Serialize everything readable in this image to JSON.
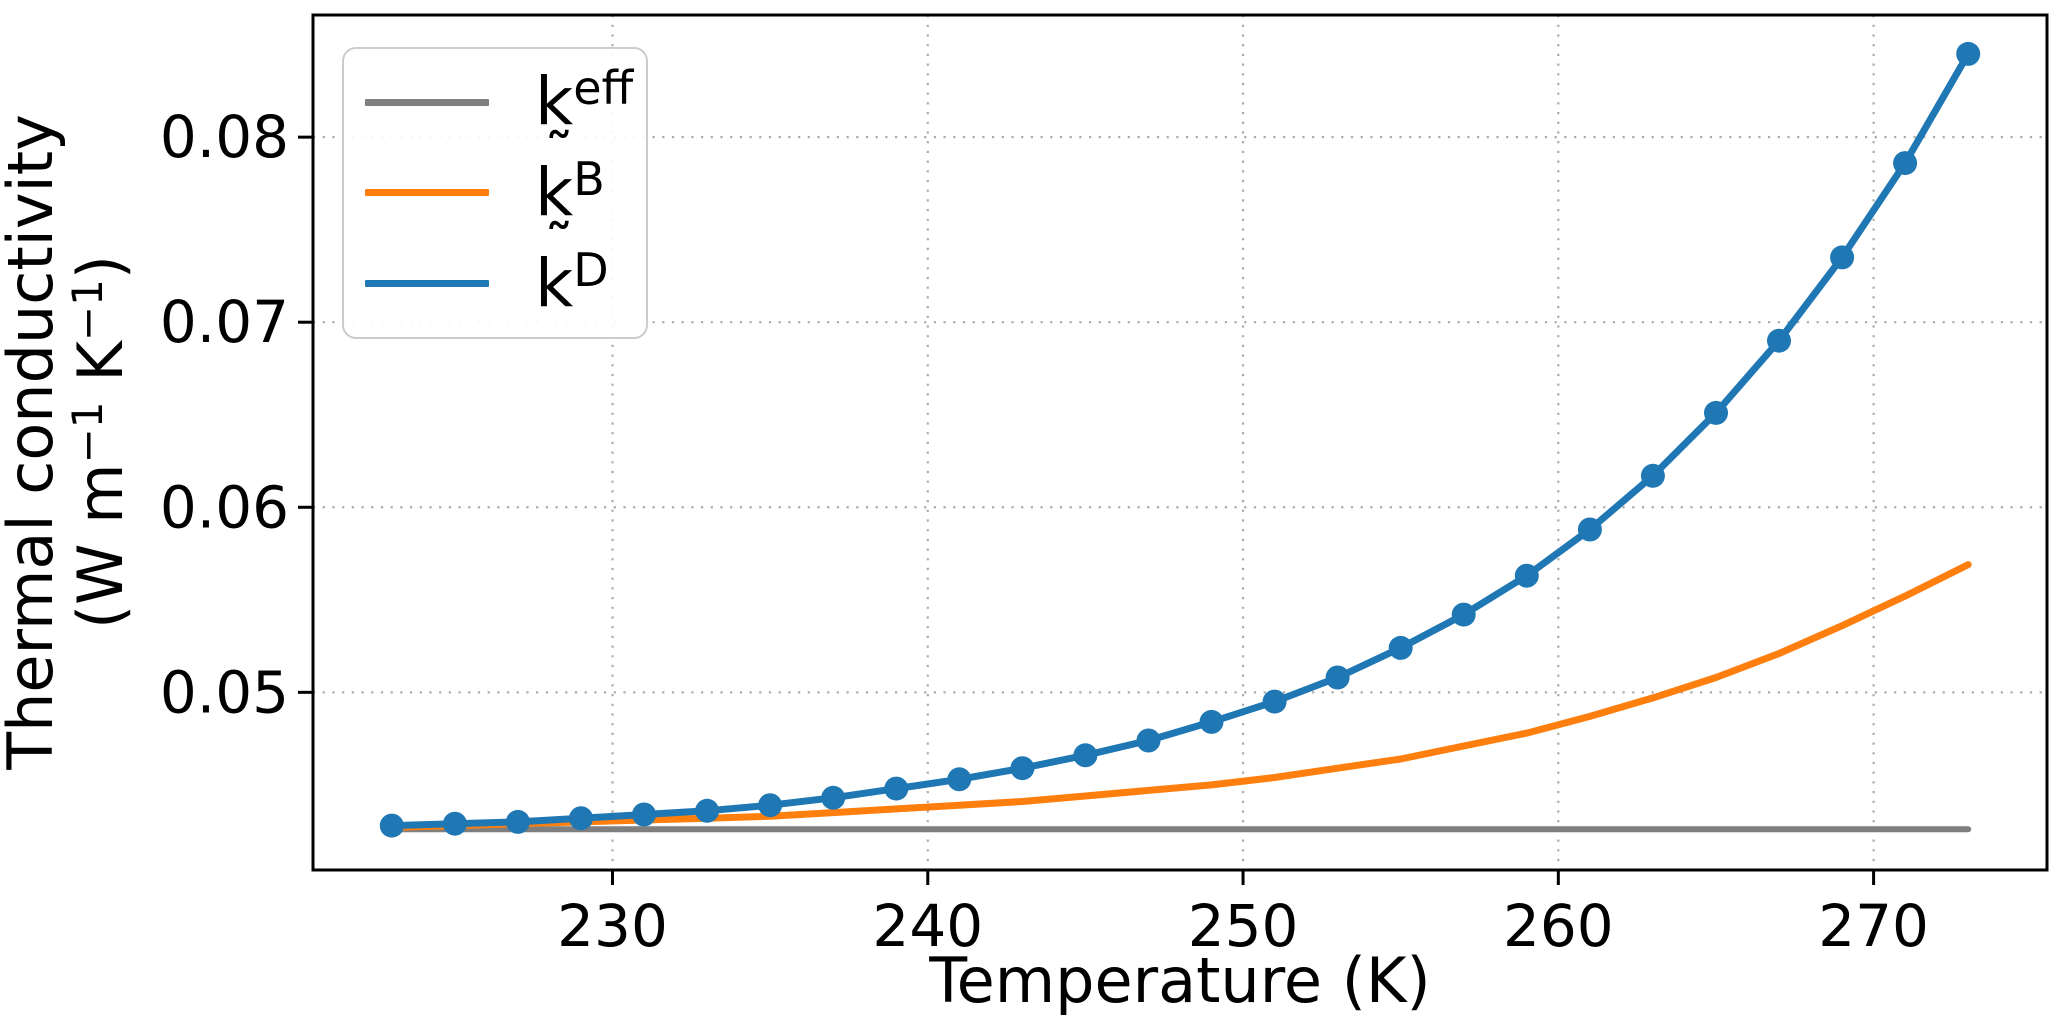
{
  "figure": {
    "xlabel": "Temperature (K)",
    "ylabel_line1": "Thermal conductivity",
    "ylabel_units": {
      "open": "(W m",
      "sup1": "−1",
      "mid": " K",
      "sup2": "−1",
      "close": ")"
    }
  },
  "legend": {
    "items": [
      {
        "base": "k",
        "tilde": "",
        "sup": "eff",
        "color": "#7f7f7f"
      },
      {
        "base": "k",
        "tilde": "˜",
        "sup": "B",
        "color": "#ff7f0e"
      },
      {
        "base": "k",
        "tilde": "˜",
        "sup": "D",
        "color": "#1f77b4"
      }
    ]
  },
  "chart_data": {
    "type": "line",
    "title": "",
    "xlabel": "Temperature (K)",
    "ylabel": "Thermal conductivity (W m−1 K−1)",
    "xlim": [
      220.5,
      275.5
    ],
    "ylim": [
      0.0404,
      0.0866
    ],
    "x_ticks": [
      230,
      240,
      250,
      260,
      270
    ],
    "y_ticks": [
      0.05,
      0.06,
      0.07,
      0.08
    ],
    "grid": "dotted",
    "legend_position": "upper left",
    "x": [
      223,
      225,
      227,
      229,
      231,
      233,
      235,
      237,
      239,
      241,
      243,
      245,
      247,
      249,
      251,
      253,
      255,
      257,
      259,
      261,
      263,
      265,
      267,
      269,
      271,
      273
    ],
    "series": [
      {
        "id": "keff",
        "name": "k^eff",
        "color": "#7f7f7f",
        "marker": false,
        "linewidth": 6,
        "values": [
          0.0426,
          0.0426,
          0.0426,
          0.0426,
          0.0426,
          0.0426,
          0.0426,
          0.0426,
          0.0426,
          0.0426,
          0.0426,
          0.0426,
          0.0426,
          0.0426,
          0.0426,
          0.0426,
          0.0426,
          0.0426,
          0.0426,
          0.0426,
          0.0426,
          0.0426,
          0.0426,
          0.0426,
          0.0426,
          0.0426
        ]
      },
      {
        "id": "kB",
        "name": "k̃^B",
        "color": "#ff7f0e",
        "marker": false,
        "linewidth": 7,
        "values": [
          0.0427,
          0.0428,
          0.0429,
          0.043,
          0.0431,
          0.0432,
          0.0433,
          0.0435,
          0.0437,
          0.0439,
          0.0441,
          0.0444,
          0.0447,
          0.045,
          0.0454,
          0.0459,
          0.0464,
          0.0471,
          0.0478,
          0.0487,
          0.0497,
          0.0508,
          0.0521,
          0.0536,
          0.0552,
          0.0569
        ]
      },
      {
        "id": "kD",
        "name": "k̃^D",
        "color": "#1f77b4",
        "marker": true,
        "linewidth": 7,
        "values": [
          0.0428,
          0.0429,
          0.043,
          0.0432,
          0.0434,
          0.0436,
          0.0439,
          0.0443,
          0.0448,
          0.0453,
          0.0459,
          0.0466,
          0.0474,
          0.0484,
          0.0495,
          0.0508,
          0.0524,
          0.0542,
          0.0563,
          0.0588,
          0.0617,
          0.0651,
          0.069,
          0.0735,
          0.0786,
          0.0845
        ]
      }
    ]
  }
}
